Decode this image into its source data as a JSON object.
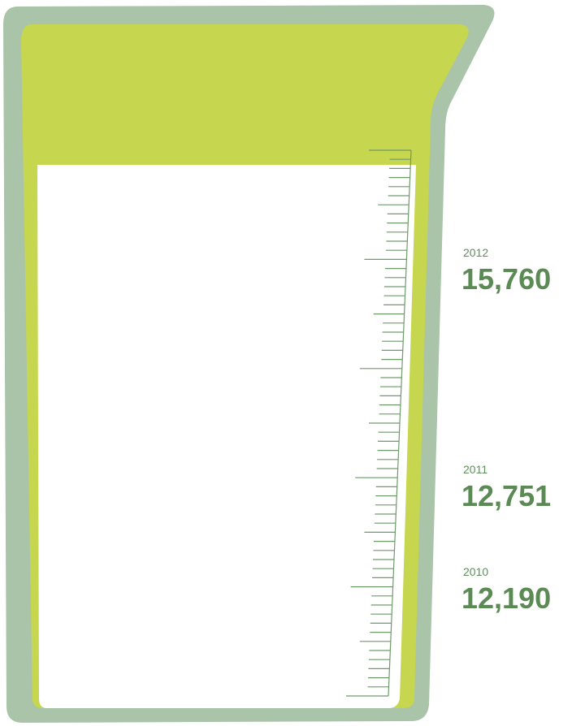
{
  "items": [
    {
      "year": "2012",
      "value": "15,760"
    },
    {
      "year": "2011",
      "value": "12,751"
    },
    {
      "year": "2010",
      "value": "12,190"
    }
  ]
}
